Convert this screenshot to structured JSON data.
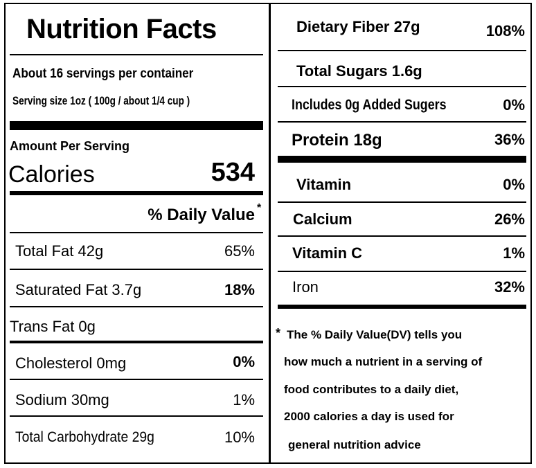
{
  "title": "Nutrition Facts",
  "servings_per_container": "About 16 servings per container",
  "serving_size": "Serving size 1oz ( 100g / about 1/4 cup )",
  "amount_per_serving": "Amount Per Serving",
  "calories": {
    "label": "Calories",
    "value": "534"
  },
  "daily_value_header": "% Daily Value",
  "daily_value_marker": "*",
  "left_nutrients": [
    {
      "label": "Total Fat 42g",
      "dv": "65%"
    },
    {
      "label": "Saturated Fat 3.7g",
      "dv": "18%"
    },
    {
      "label": "Trans Fat 0g",
      "dv": ""
    },
    {
      "label": "Cholesterol  0mg",
      "dv": "0%"
    },
    {
      "label": "Sodium  30mg",
      "dv": "1%"
    },
    {
      "label": "Total Carbohydrate  29g",
      "dv": "10%"
    }
  ],
  "right_nutrients": [
    {
      "label": "Dietary Fiber 27g",
      "dv": "108%"
    },
    {
      "label": "Total Sugars 1.6g",
      "dv": ""
    },
    {
      "label": "Includes 0g Added Sugers",
      "dv": "0%"
    },
    {
      "label": "Protein 18g",
      "dv": "36%"
    }
  ],
  "vitamins": [
    {
      "label": "Vitamin",
      "dv": "0%"
    },
    {
      "label": "Calcium",
      "dv": "26%"
    },
    {
      "label": "Vitamin C",
      "dv": "1%"
    },
    {
      "label": "Iron",
      "dv": "32%"
    }
  ],
  "footnote": {
    "marker": "*",
    "lines": [
      "The % Daily Value(DV)  tells you",
      "how much a nutrient in a serving of",
      "food contributes to a daily diet,",
      "2000 calories a day is used for",
      "general nutrition advice"
    ]
  }
}
